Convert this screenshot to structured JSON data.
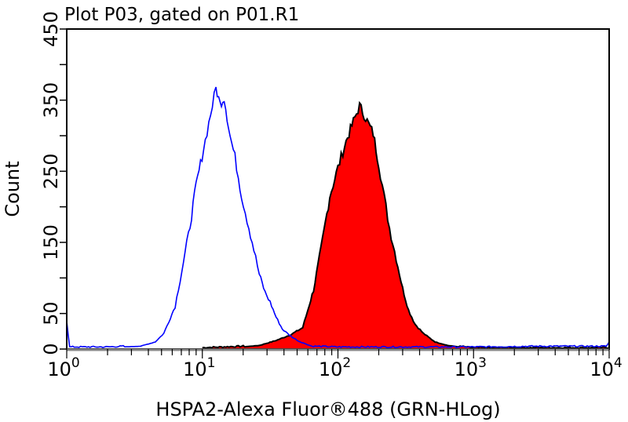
{
  "chart_data": {
    "type": "area",
    "title": "Plot P03, gated on P01.R1",
    "xlabel": "HSPA2-Alexa Fluor®488 (GRN-HLog)",
    "ylabel": "Count",
    "xscale": "log",
    "xlim": [
      1,
      10000
    ],
    "ylim": [
      0,
      450
    ],
    "x_ticks": [
      1,
      10,
      100,
      1000,
      10000
    ],
    "x_tick_labels": [
      {
        "base": "10",
        "exp": "0"
      },
      {
        "base": "10",
        "exp": "1"
      },
      {
        "base": "10",
        "exp": "2"
      },
      {
        "base": "10",
        "exp": "3"
      },
      {
        "base": "10",
        "exp": "4"
      }
    ],
    "y_ticks": [
      0,
      50,
      100,
      150,
      200,
      250,
      300,
      350,
      400,
      450
    ],
    "y_tick_labels": [
      "0",
      "50",
      "150",
      "250",
      "350",
      "450"
    ],
    "y_labeled_values": [
      0,
      50,
      150,
      250,
      350,
      450
    ],
    "grid": false,
    "series": [
      {
        "style": "line",
        "color": "#0000ff",
        "points": [
          [
            1,
            40
          ],
          [
            1.05,
            2
          ],
          [
            2,
            2
          ],
          [
            3.5,
            4
          ],
          [
            4.5,
            10
          ],
          [
            5.2,
            22
          ],
          [
            6.3,
            60
          ],
          [
            7.9,
            160
          ],
          [
            9,
            230
          ],
          [
            10.2,
            281
          ],
          [
            11.5,
            330
          ],
          [
            12.6,
            367
          ],
          [
            13.5,
            345
          ],
          [
            14.5,
            353
          ],
          [
            16,
            300
          ],
          [
            17.4,
            270
          ],
          [
            19.5,
            215
          ],
          [
            21.4,
            182
          ],
          [
            24,
            140
          ],
          [
            26.3,
            105
          ],
          [
            29,
            80
          ],
          [
            31.6,
            66
          ],
          [
            35,
            45
          ],
          [
            38.9,
            28
          ],
          [
            45,
            18
          ],
          [
            51.3,
            11
          ],
          [
            66.1,
            3
          ],
          [
            100,
            2
          ],
          [
            300,
            2
          ],
          [
            1000,
            2
          ],
          [
            3000,
            3
          ],
          [
            9500,
            3
          ],
          [
            10000,
            10
          ]
        ]
      },
      {
        "style": "filled",
        "color": "#ff0000",
        "edge_color": "#000000",
        "points": [
          [
            10,
            1
          ],
          [
            20,
            3
          ],
          [
            26.3,
            5
          ],
          [
            35,
            12
          ],
          [
            44.7,
            20
          ],
          [
            55,
            30
          ],
          [
            60,
            55
          ],
          [
            66.1,
            83
          ],
          [
            75,
            140
          ],
          [
            87.1,
            215
          ],
          [
            100,
            255
          ],
          [
            114.8,
            292
          ],
          [
            130,
            320
          ],
          [
            144.5,
            342
          ],
          [
            160,
            325
          ],
          [
            182,
            303
          ],
          [
            200,
            260
          ],
          [
            218.8,
            215
          ],
          [
            240,
            170
          ],
          [
            269.2,
            127
          ],
          [
            300,
            85
          ],
          [
            331,
            55
          ],
          [
            370,
            35
          ],
          [
            426.6,
            22
          ],
          [
            520,
            10
          ],
          [
            645.7,
            5
          ],
          [
            955,
            1
          ],
          [
            3000,
            1
          ],
          [
            10000,
            1
          ]
        ]
      }
    ]
  }
}
